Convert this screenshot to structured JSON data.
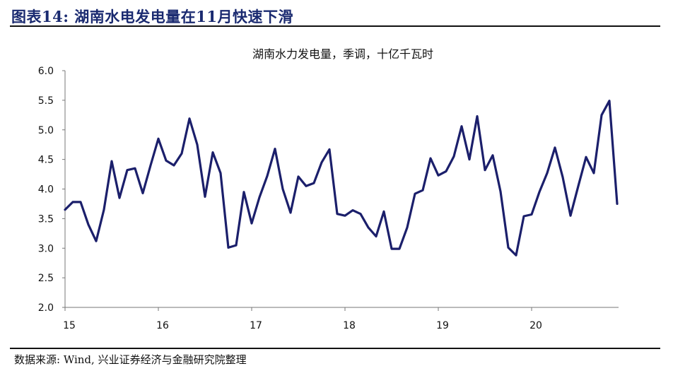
{
  "figure": {
    "title": "图表14: 湖南水电发电量在11月快速下滑",
    "source": "数据来源: Wind, 兴业证券经济与金融研究院整理"
  },
  "chart_data": {
    "type": "line",
    "title": "湖南水力发电量，季调，十亿千瓦时",
    "xlabel": "",
    "ylabel": "",
    "ylim": [
      2.0,
      6.0
    ],
    "y_ticks": [
      "2.0",
      "2.5",
      "3.0",
      "3.5",
      "4.0",
      "4.5",
      "5.0",
      "5.5",
      "6.0"
    ],
    "x_ticks": [
      "15",
      "16",
      "17",
      "18",
      "19",
      "20"
    ],
    "x_start": "2015-01",
    "grid": false,
    "legend": "none",
    "series": [
      {
        "color": "#1b1f6b",
        "values": [
          3.65,
          3.78,
          3.78,
          3.4,
          3.12,
          3.65,
          4.47,
          3.85,
          4.32,
          4.35,
          3.93,
          4.4,
          4.85,
          4.48,
          4.4,
          4.6,
          5.19,
          4.75,
          3.87,
          4.62,
          4.27,
          3.01,
          3.05,
          3.95,
          3.42,
          3.86,
          4.22,
          4.68,
          4.0,
          3.6,
          4.21,
          4.05,
          4.1,
          4.45,
          4.67,
          3.58,
          3.55,
          3.64,
          3.58,
          3.35,
          3.2,
          3.62,
          2.99,
          2.99,
          3.35,
          3.92,
          3.98,
          4.52,
          4.23,
          4.3,
          4.55,
          5.06,
          4.5,
          5.23,
          4.32,
          4.57,
          3.96,
          3.01,
          2.88,
          3.54,
          3.57,
          3.95,
          4.27,
          4.7,
          4.2,
          3.55,
          4.05,
          4.54,
          4.27,
          5.25,
          5.49,
          3.75
        ]
      }
    ]
  }
}
